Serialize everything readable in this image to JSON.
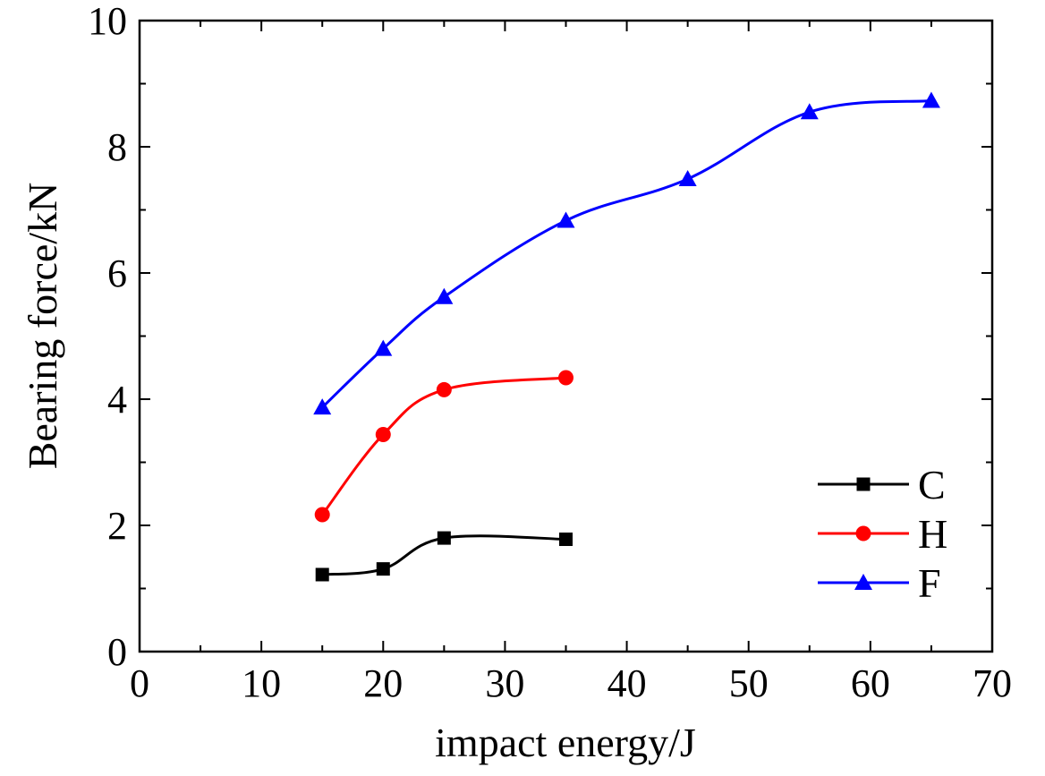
{
  "chart_data": {
    "type": "line",
    "title": "",
    "xlabel": "impact energy/J",
    "ylabel": "Bearing force/kN",
    "xlim": [
      0,
      70
    ],
    "ylim": [
      0,
      10
    ],
    "xticks": [
      "0",
      "10",
      "20",
      "30",
      "40",
      "50",
      "60",
      "70"
    ],
    "yticks": [
      "0",
      "2",
      "4",
      "6",
      "8",
      "10"
    ],
    "grid": false,
    "legend_position": "bottom-right",
    "series": [
      {
        "name": "C",
        "color": "#000000",
        "marker": "square",
        "x": [
          15,
          20,
          25,
          35
        ],
        "y": [
          1.22,
          1.31,
          1.8,
          1.78
        ]
      },
      {
        "name": "H",
        "color": "#ff0000",
        "marker": "circle",
        "x": [
          15,
          20,
          25,
          35
        ],
        "y": [
          2.17,
          3.44,
          4.15,
          4.34
        ]
      },
      {
        "name": "F",
        "color": "#0000ff",
        "marker": "triangle",
        "x": [
          15,
          20,
          25,
          35,
          45,
          55,
          65
        ],
        "y": [
          3.87,
          4.8,
          5.62,
          6.83,
          7.49,
          8.55,
          8.73
        ]
      }
    ]
  }
}
